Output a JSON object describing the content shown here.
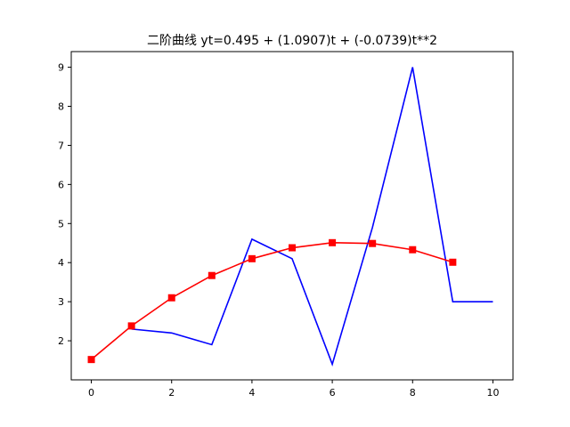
{
  "chart_data": {
    "type": "line",
    "title": "二阶曲线 yt=0.495 + (1.0907)t + (-0.0739)t**2",
    "xlabel": "",
    "ylabel": "",
    "xlim": [
      -0.5,
      10.5
    ],
    "ylim": [
      1.0,
      9.4
    ],
    "xticks": [
      0,
      2,
      4,
      6,
      8,
      10
    ],
    "yticks": [
      2,
      3,
      4,
      5,
      6,
      7,
      8,
      9
    ],
    "grid": false,
    "series": [
      {
        "color": "#0000ff",
        "marker": "none",
        "x": [
          1,
          2,
          3,
          4,
          5,
          6,
          7,
          8,
          9,
          10
        ],
        "y": [
          2.3,
          2.2,
          1.9,
          4.6,
          4.1,
          1.4,
          4.9,
          9.0,
          3.0,
          3.0
        ]
      },
      {
        "color": "#ff0000",
        "marker": "square",
        "x": [
          0,
          1,
          2,
          3,
          4,
          5,
          6,
          7,
          8,
          9
        ],
        "y": [
          1.52,
          2.38,
          3.1,
          3.67,
          4.1,
          4.38,
          4.51,
          4.49,
          4.33,
          4.01
        ]
      }
    ]
  }
}
